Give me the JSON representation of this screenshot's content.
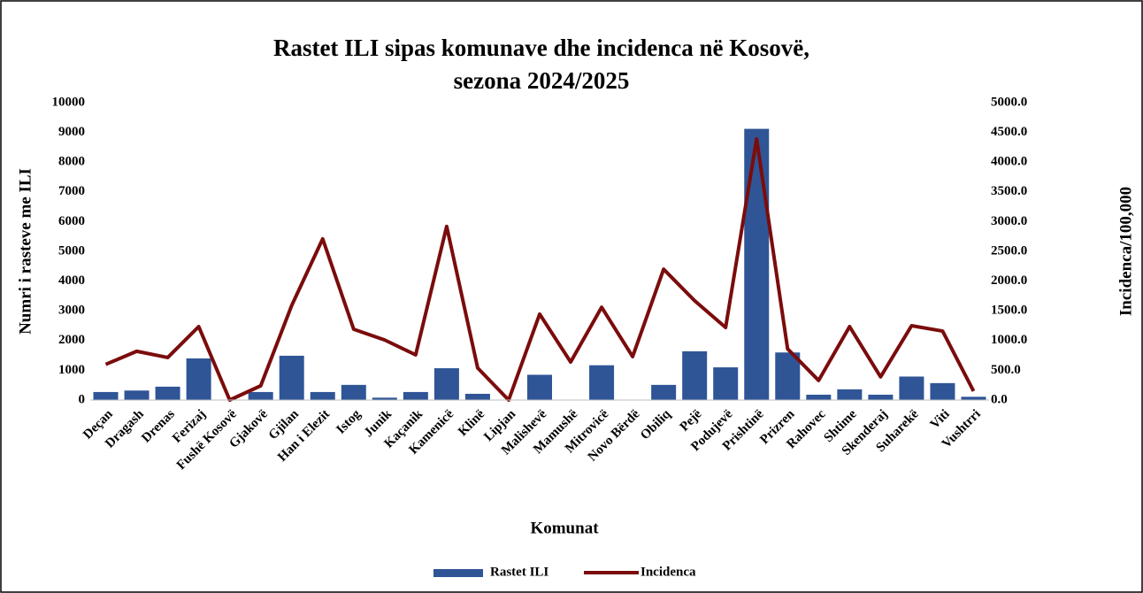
{
  "chart_data": {
    "type": "bar",
    "title": [
      "Rastet ILI sipas komunave dhe incidenca në Kosovë,",
      "sezona 2024/2025"
    ],
    "x_label": "Komunat",
    "y_label": "Numri i rasteve me ILI",
    "y2_label": "Incidenca/100,000",
    "categories": [
      "Deçan",
      "Dragash",
      "Drenas",
      "Ferizaj",
      "Fushë Kosovë",
      "Gjakovë",
      "Gjilan",
      "Han i Elezit",
      "Istog",
      "Junik",
      "Kaçanik",
      "Kamenicë",
      "Klinë",
      "Lipjan",
      "Malishevë",
      "Mamushë",
      "Mitrovicë",
      "Novo Bërdë",
      "Obiliq",
      "Pejë",
      "Podujevë",
      "Prishtinë",
      "Prizren",
      "Rahovec",
      "Shtime",
      "Skenderaj",
      "Suharekë",
      "Viti",
      "Vushtrri"
    ],
    "series": [
      {
        "name": "Rastet ILI",
        "type": "bar",
        "color": "#2f5597",
        "values": [
          270,
          320,
          450,
          1400,
          0,
          270,
          1490,
          270,
          510,
          80,
          270,
          1070,
          210,
          0,
          850,
          0,
          1170,
          0,
          510,
          1640,
          1100,
          9120,
          1600,
          180,
          360,
          180,
          790,
          570,
          110
        ]
      },
      {
        "name": "Incidenca",
        "type": "line",
        "axis": "y2",
        "color": "#7b0c0c",
        "values": [
          600,
          820,
          715,
          1235,
          0,
          240,
          1590,
          2710,
          1190,
          1010,
          760,
          2920,
          540,
          0,
          1445,
          640,
          1560,
          730,
          2200,
          1670,
          1220,
          4390,
          860,
          330,
          1235,
          390,
          1250,
          1160,
          150
        ]
      }
    ],
    "ylim": [
      0,
      10000
    ],
    "yticks": [
      0,
      1000,
      2000,
      3000,
      4000,
      5000,
      6000,
      7000,
      8000,
      9000,
      10000
    ],
    "y2lim": [
      0,
      5000
    ],
    "y2ticks": [
      {
        "value": 0,
        "label": "0.0"
      },
      {
        "value": 500,
        "label": "500.0"
      },
      {
        "value": 1000,
        "label": "1000.0"
      },
      {
        "value": 1500,
        "label": "1500.0"
      },
      {
        "value": 2000,
        "label": "2000.0"
      },
      {
        "value": 2500,
        "label": "2500.0"
      },
      {
        "value": 3000,
        "label": "3000.0"
      },
      {
        "value": 3500,
        "label": "3500.0"
      },
      {
        "value": 4000,
        "label": "4000.0"
      },
      {
        "value": 4500,
        "label": "4500.0"
      },
      {
        "value": 5000,
        "label": "5000.0"
      }
    ],
    "legend": "bottom"
  }
}
